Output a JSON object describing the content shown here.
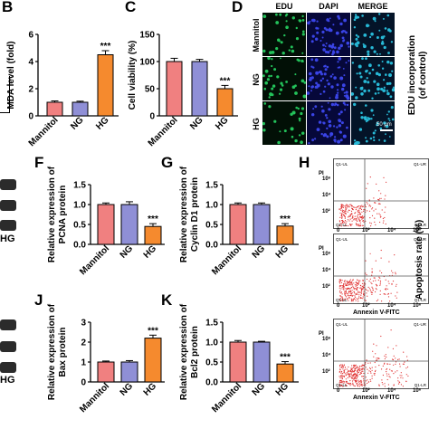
{
  "panels": {
    "B": "B",
    "C": "C",
    "D": "D",
    "F": "F",
    "G": "G",
    "H": "H",
    "J": "J",
    "K": "K"
  },
  "colors": {
    "mannitol": "#f08080",
    "ng": "#8f8fd6",
    "hg": "#f58a2e",
    "edu": "#23c25a",
    "dapi": "#3a44e6",
    "merge": "#27b9d6",
    "flow": "#e03030"
  },
  "blot_label": "HG",
  "edu_panel": {
    "columns": [
      "EDU",
      "DAPI",
      "MERGE"
    ],
    "rows": [
      "Mannitol",
      "NG",
      "HG"
    ],
    "scale_bar": "50 μm",
    "side_label": "EDU incorporation\n(of control)"
  },
  "flow_panel": {
    "xlabel": "Annexin V-FITC",
    "ylabel": "PI",
    "quadrants": [
      "Q1-UL",
      "Q1-UR",
      "Q1-LL",
      "Q1-LR"
    ],
    "x_ticks": [
      "0",
      "10²",
      "10⁴",
      "10⁶"
    ],
    "y_ticks": [
      "10²",
      "10⁴",
      "10⁶"
    ],
    "side_label": "Apoptosis rate (%)"
  },
  "chart_data": [
    {
      "id": "B",
      "type": "bar",
      "categories": [
        "Mannitol",
        "NG",
        "HG"
      ],
      "values": [
        1.0,
        1.0,
        4.5
      ],
      "errors": [
        0.1,
        0.08,
        0.3
      ],
      "ylabel": "MDA level (fold)",
      "yticks": [
        0,
        2,
        4,
        6
      ],
      "ylim": [
        0,
        6
      ],
      "significance": [
        "",
        "",
        "***"
      ]
    },
    {
      "id": "C",
      "type": "bar",
      "categories": [
        "Mannitol",
        "NG",
        "HG"
      ],
      "values": [
        100,
        100,
        50
      ],
      "errors": [
        6,
        4,
        6
      ],
      "ylabel": "Cell viability (%)",
      "yticks": [
        0,
        50,
        100,
        150
      ],
      "ylim": [
        0,
        150
      ],
      "significance": [
        "",
        "",
        "***"
      ]
    },
    {
      "id": "F",
      "type": "bar",
      "categories": [
        "Mannitol",
        "NG",
        "HG"
      ],
      "values": [
        1.0,
        1.0,
        0.45
      ],
      "errors": [
        0.04,
        0.07,
        0.07
      ],
      "ylabel": "Relative expression of\nPCNA protein",
      "yticks": [
        0.0,
        0.5,
        1.0,
        1.5
      ],
      "ylim": [
        0,
        1.5
      ],
      "significance": [
        "",
        "",
        "***"
      ]
    },
    {
      "id": "G",
      "type": "bar",
      "categories": [
        "Mannitol",
        "NG",
        "HG"
      ],
      "values": [
        1.0,
        1.0,
        0.46
      ],
      "errors": [
        0.04,
        0.04,
        0.06
      ],
      "ylabel": "Relative expression of\nCyclin D1 protein",
      "yticks": [
        0.0,
        0.5,
        1.0,
        1.5
      ],
      "ylim": [
        0,
        1.5
      ],
      "significance": [
        "",
        "",
        "***"
      ]
    },
    {
      "id": "J",
      "type": "bar",
      "categories": [
        "Mannitol",
        "NG",
        "HG"
      ],
      "values": [
        1.0,
        1.0,
        2.2
      ],
      "errors": [
        0.05,
        0.07,
        0.15
      ],
      "ylabel": "Relative expression of\nBax protein",
      "yticks": [
        0,
        1,
        2,
        3
      ],
      "ylim": [
        0,
        3
      ],
      "significance": [
        "",
        "",
        "***"
      ]
    },
    {
      "id": "K",
      "type": "bar",
      "categories": [
        "Mannitol",
        "NG",
        "HG"
      ],
      "values": [
        1.0,
        1.0,
        0.45
      ],
      "errors": [
        0.04,
        0.02,
        0.06
      ],
      "ylabel": "Relative expression of\nBcl2 protein",
      "yticks": [
        0.0,
        0.5,
        1.0,
        1.5
      ],
      "ylim": [
        0,
        1.5
      ],
      "significance": [
        "",
        "",
        "***"
      ]
    }
  ]
}
